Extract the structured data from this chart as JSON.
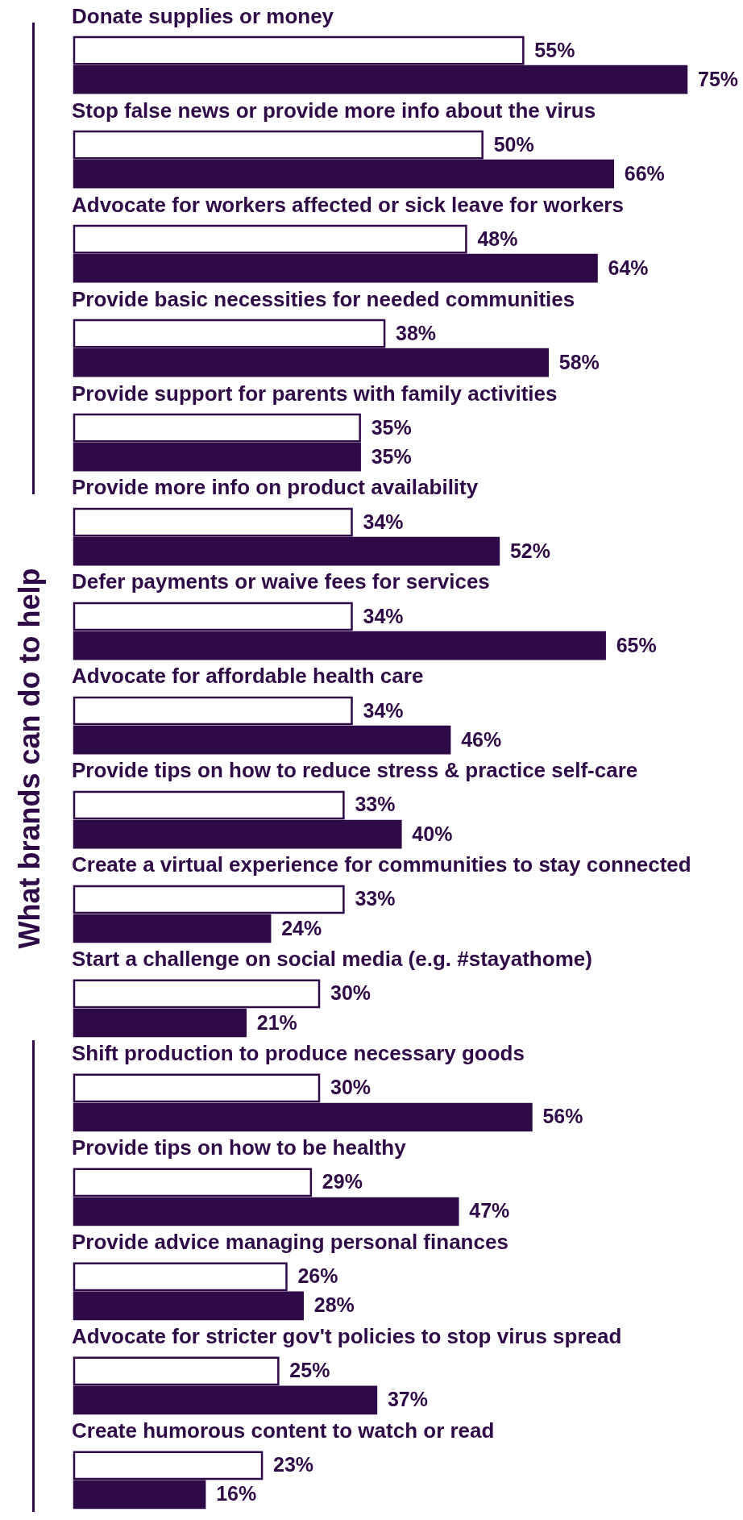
{
  "chart_data": {
    "type": "bar",
    "orientation": "horizontal",
    "ylabel": "What brands can do to help",
    "categories": [
      "Donate supplies or money",
      "Stop false news or provide more info about the virus",
      "Advocate for workers affected or sick leave for workers",
      "Provide basic necessities for needed communities",
      "Provide support for parents with family activities",
      "Provide more info on product availability",
      "Defer payments or waive fees for services",
      "Advocate for affordable health care",
      "Provide tips on how to reduce stress & practice self-care",
      "Create a virtual experience for communities to stay connected",
      "Start a challenge on social media (e.g. #stayathome)",
      "Shift production to produce necessary goods",
      "Provide tips on how to be healthy",
      "Provide advice managing personal finances",
      "Advocate for stricter gov't policies to stop virus spread",
      "Create humorous content to watch or read"
    ],
    "series": [
      {
        "color": "#ffffff",
        "values": [
          55,
          50,
          48,
          38,
          35,
          34,
          34,
          34,
          33,
          33,
          30,
          30,
          29,
          26,
          25,
          23
        ],
        "value_labels": [
          "55%",
          "50%",
          "48%",
          "38%",
          "35%",
          "34%",
          "34%",
          "34%",
          "33%",
          "33%",
          "30%",
          "30%",
          "29%",
          "26%",
          "25%",
          "23%"
        ]
      },
      {
        "color": "#2e0b47",
        "values": [
          75,
          66,
          64,
          58,
          35,
          52,
          65,
          46,
          40,
          24,
          21,
          56,
          47,
          28,
          37,
          16
        ],
        "value_labels": [
          "75%",
          "66%",
          "64%",
          "58%",
          "35%",
          "52%",
          "65%",
          "46%",
          "40%",
          "24%",
          "21%",
          "56%",
          "47%",
          "28%",
          "37%",
          "16%"
        ]
      }
    ],
    "stacked": false
  }
}
